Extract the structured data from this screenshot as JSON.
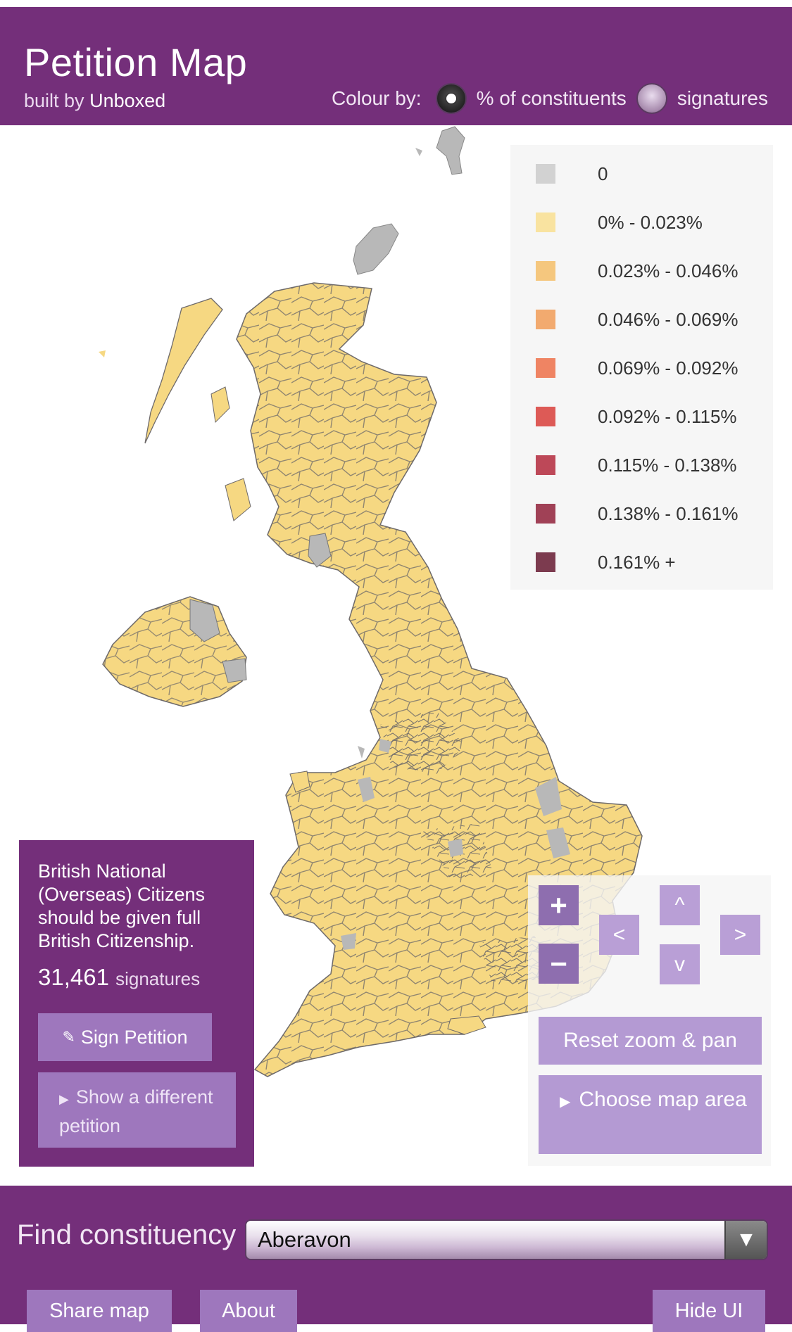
{
  "header": {
    "title": "Petition Map",
    "built_by": "built by",
    "brand": "Unboxed",
    "colour_by_label": "Colour by:",
    "options": [
      {
        "label": "% of constituents",
        "selected": true
      },
      {
        "label": "signatures",
        "selected": false
      }
    ]
  },
  "legend": {
    "items": [
      {
        "label": "0",
        "color": "#d2d2d2"
      },
      {
        "label": "0% - 0.023%",
        "color": "#f9e3a0"
      },
      {
        "label": "0.023% - 0.046%",
        "color": "#f5c77e"
      },
      {
        "label": "0.046% - 0.069%",
        "color": "#f2aa6f"
      },
      {
        "label": "0.069% - 0.092%",
        "color": "#ef8463"
      },
      {
        "label": "0.092% - 0.115%",
        "color": "#dd5a56"
      },
      {
        "label": "0.115% - 0.138%",
        "color": "#bd4858"
      },
      {
        "label": "0.138% - 0.161%",
        "color": "#a04156"
      },
      {
        "label": "0.161% +",
        "color": "#7c3b4f"
      }
    ]
  },
  "petition": {
    "title": "British National (Overseas) Citizens should be given full British Citizenship.",
    "count": "31,461",
    "count_unit": "signatures",
    "sign_label": "Sign Petition",
    "show_other_label": "Show a different petition"
  },
  "controls": {
    "zoom_in": "+",
    "zoom_out": "−",
    "pan_up": "^",
    "pan_left": "<",
    "pan_right": ">",
    "pan_down": "v",
    "reset_label": "Reset zoom & pan",
    "choose_area_label": "Choose map area"
  },
  "footer": {
    "find_label": "Find constituency",
    "selected_constituency": "Aberavon",
    "share_label": "Share map",
    "about_label": "About",
    "hide_label": "Hide UI"
  },
  "colors": {
    "brand_purple": "#742f7a",
    "button_purple": "#9e77bd",
    "map_fill": "#f6d882",
    "map_zero": "#b8b8b8"
  }
}
